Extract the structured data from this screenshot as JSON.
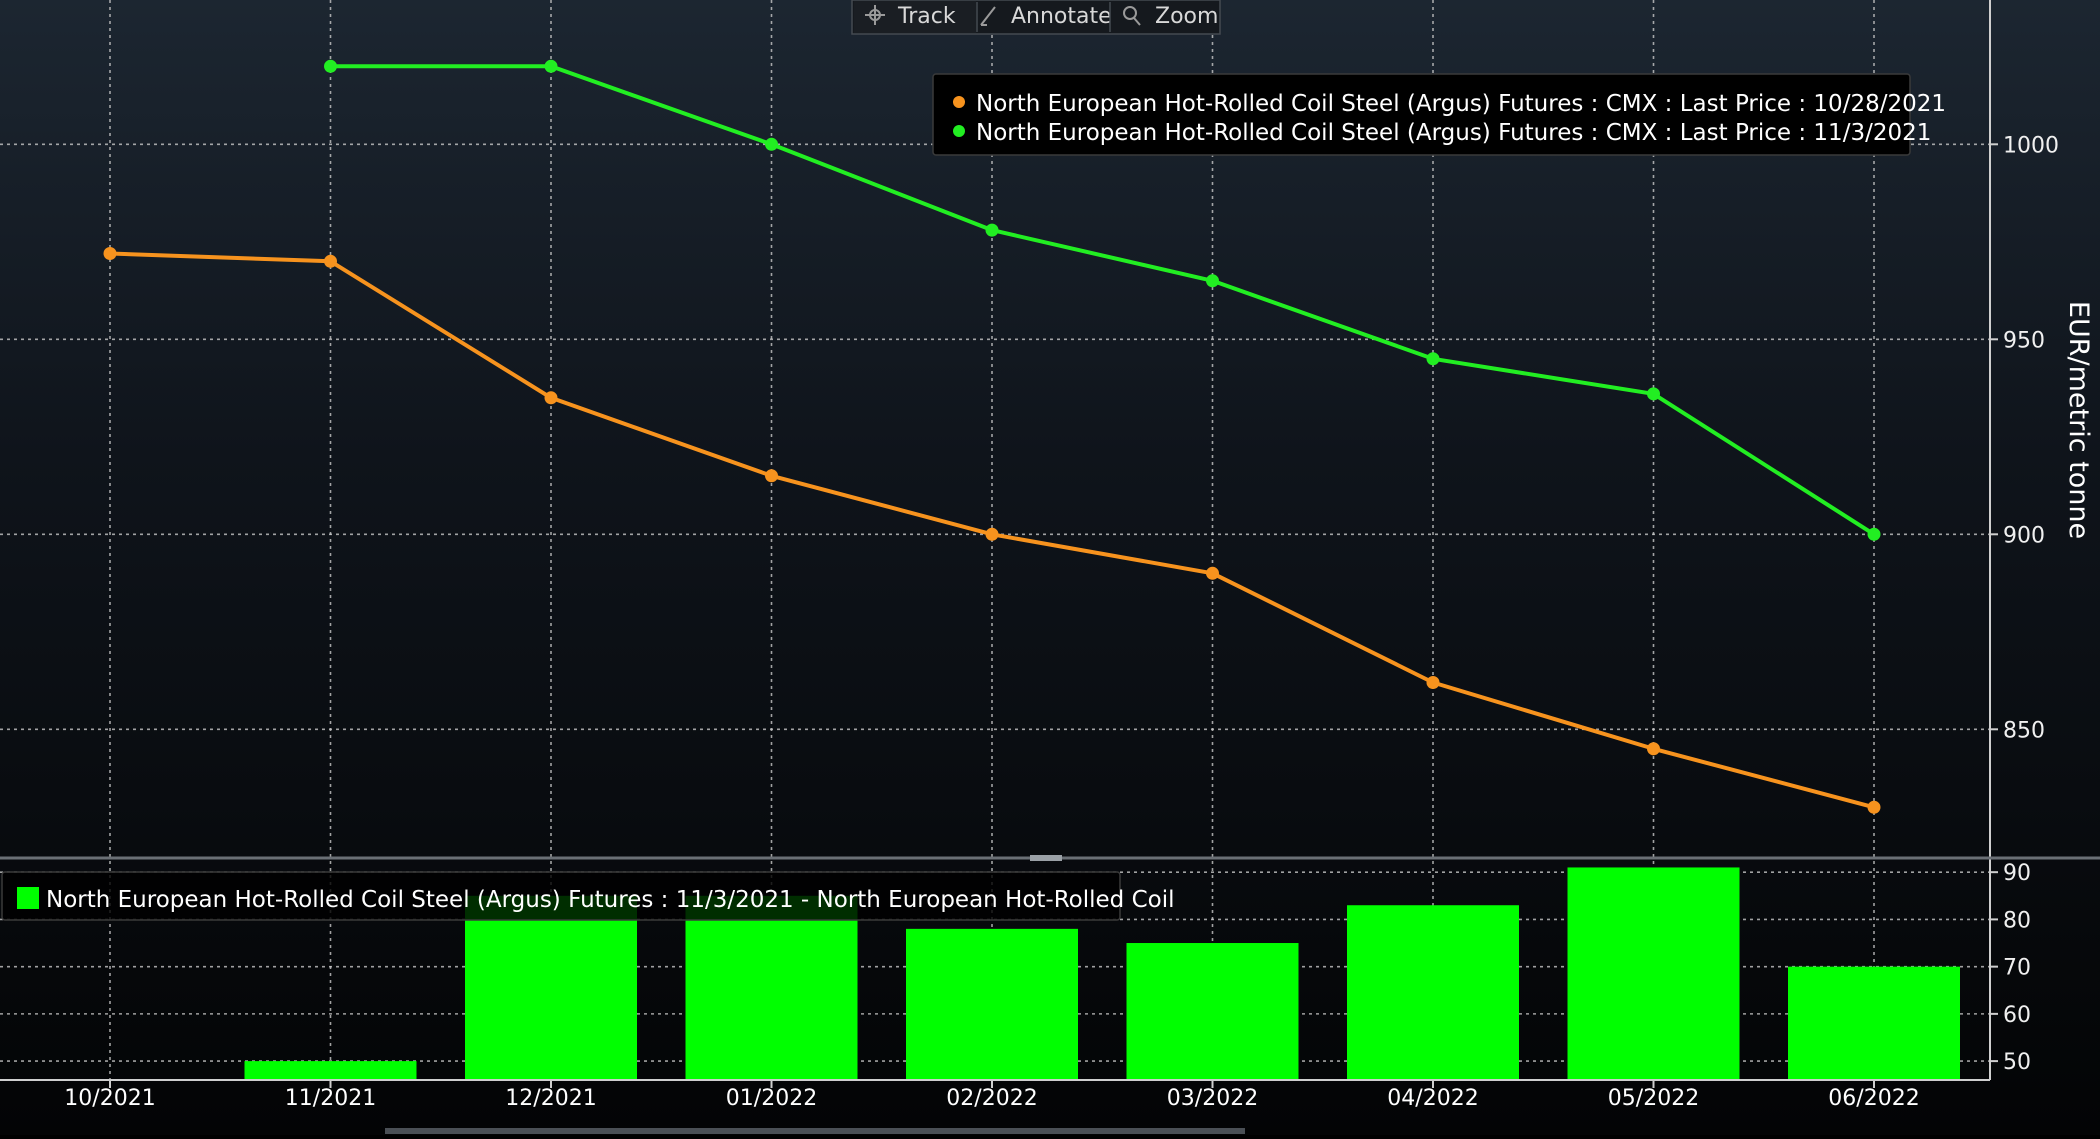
{
  "toolbar": {
    "items": [
      {
        "label": "Track",
        "icon": "crosshair-icon"
      },
      {
        "label": "Annotate",
        "icon": "pencil-icon"
      },
      {
        "label": "Zoom",
        "icon": "magnifier-icon"
      }
    ]
  },
  "colors": {
    "series_1": "#f7931e",
    "series_2": "#22ee22",
    "bars": "#00ff00",
    "grid": "#c8c8c8",
    "axis_text": "#ffffff"
  },
  "chart_data": [
    {
      "type": "line",
      "categories": [
        "10/2021",
        "11/2021",
        "12/2021",
        "01/2022",
        "02/2022",
        "03/2022",
        "04/2022",
        "05/2022",
        "06/2022"
      ],
      "ylabel": "EUR/metric tonne",
      "ylim": [
        817,
        1037
      ],
      "yticks": [
        850,
        900,
        950,
        1000
      ],
      "grid": true,
      "legend_position": "top-right",
      "series": [
        {
          "name": "North European Hot-Rolled Coil Steel (Argus) Futures : CMX : Last Price : 10/28/2021",
          "values": [
            972,
            970,
            935,
            915,
            900,
            890,
            862,
            845,
            830
          ]
        },
        {
          "name": "North European Hot-Rolled Coil Steel (Argus) Futures : CMX : Last Price : 11/3/2021",
          "values": [
            null,
            1020,
            1020,
            1000,
            978,
            965,
            945,
            936,
            900
          ]
        }
      ]
    },
    {
      "type": "bar",
      "categories": [
        "10/2021",
        "11/2021",
        "12/2021",
        "01/2022",
        "02/2022",
        "03/2022",
        "04/2022",
        "05/2022",
        "06/2022"
      ],
      "ylim": [
        46,
        93
      ],
      "yticks": [
        50,
        60,
        70,
        80,
        90
      ],
      "grid": true,
      "legend_position": "top-left",
      "series": [
        {
          "name": "North European Hot-Rolled Coil Steel (Argus) Futures : 11/3/2021 - North European Hot-Rolled Coil",
          "values": [
            null,
            50,
            85,
            85,
            78,
            75,
            83,
            91,
            70
          ]
        }
      ]
    }
  ]
}
